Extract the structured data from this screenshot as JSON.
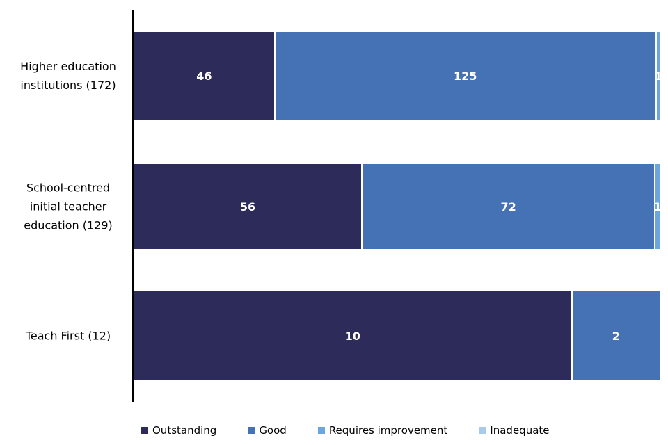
{
  "chart_data": {
    "type": "bar",
    "variant": "horizontal-100%-stacked",
    "title": "",
    "xlabel": "",
    "ylabel": "",
    "grid": false,
    "background": "#ffffff",
    "axis_color": "#000000",
    "legend_position": "bottom",
    "categories": [
      "Higher education institutions (172)",
      "School-centred initial teacher education (129)",
      "Teach First (12)"
    ],
    "category_label_lines": [
      [
        "Higher education",
        "institutions (172)"
      ],
      [
        "School-centred",
        "initial teacher",
        "education (129)"
      ],
      [
        "Teach First (12)"
      ]
    ],
    "totals": [
      172,
      129,
      12
    ],
    "series": [
      {
        "name": "Outstanding",
        "color": "#2c2b59",
        "values": [
          46,
          56,
          10
        ]
      },
      {
        "name": "Good",
        "color": "#4472b4",
        "values": [
          125,
          72,
          2
        ]
      },
      {
        "name": "Requires improvement",
        "color": "#6da6dc",
        "values": [
          1,
          1,
          0
        ]
      },
      {
        "name": "Inadequate",
        "color": "#a6cbeb",
        "values": [
          0,
          0,
          0
        ]
      }
    ],
    "data_label_color": "#ffffff"
  }
}
